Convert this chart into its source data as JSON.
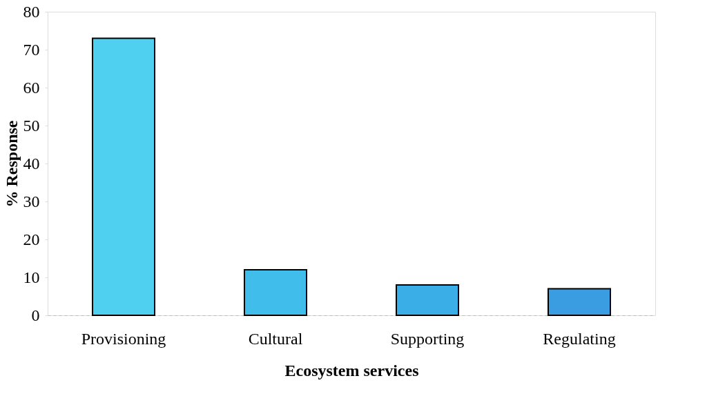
{
  "chart_data": {
    "type": "bar",
    "xlabel": "Ecosystem services",
    "ylabel": "% Response",
    "categories": [
      "Provisioning",
      "Cultural",
      "Supporting",
      "Regulating"
    ],
    "values": [
      73,
      12,
      8,
      7
    ],
    "colors": [
      "#4fd0f0",
      "#40bdea",
      "#3aaee6",
      "#3a9de2"
    ],
    "ylim": [
      0,
      80
    ],
    "yticks": [
      0,
      10,
      20,
      30,
      40,
      50,
      60,
      70,
      80
    ],
    "grid": false
  }
}
